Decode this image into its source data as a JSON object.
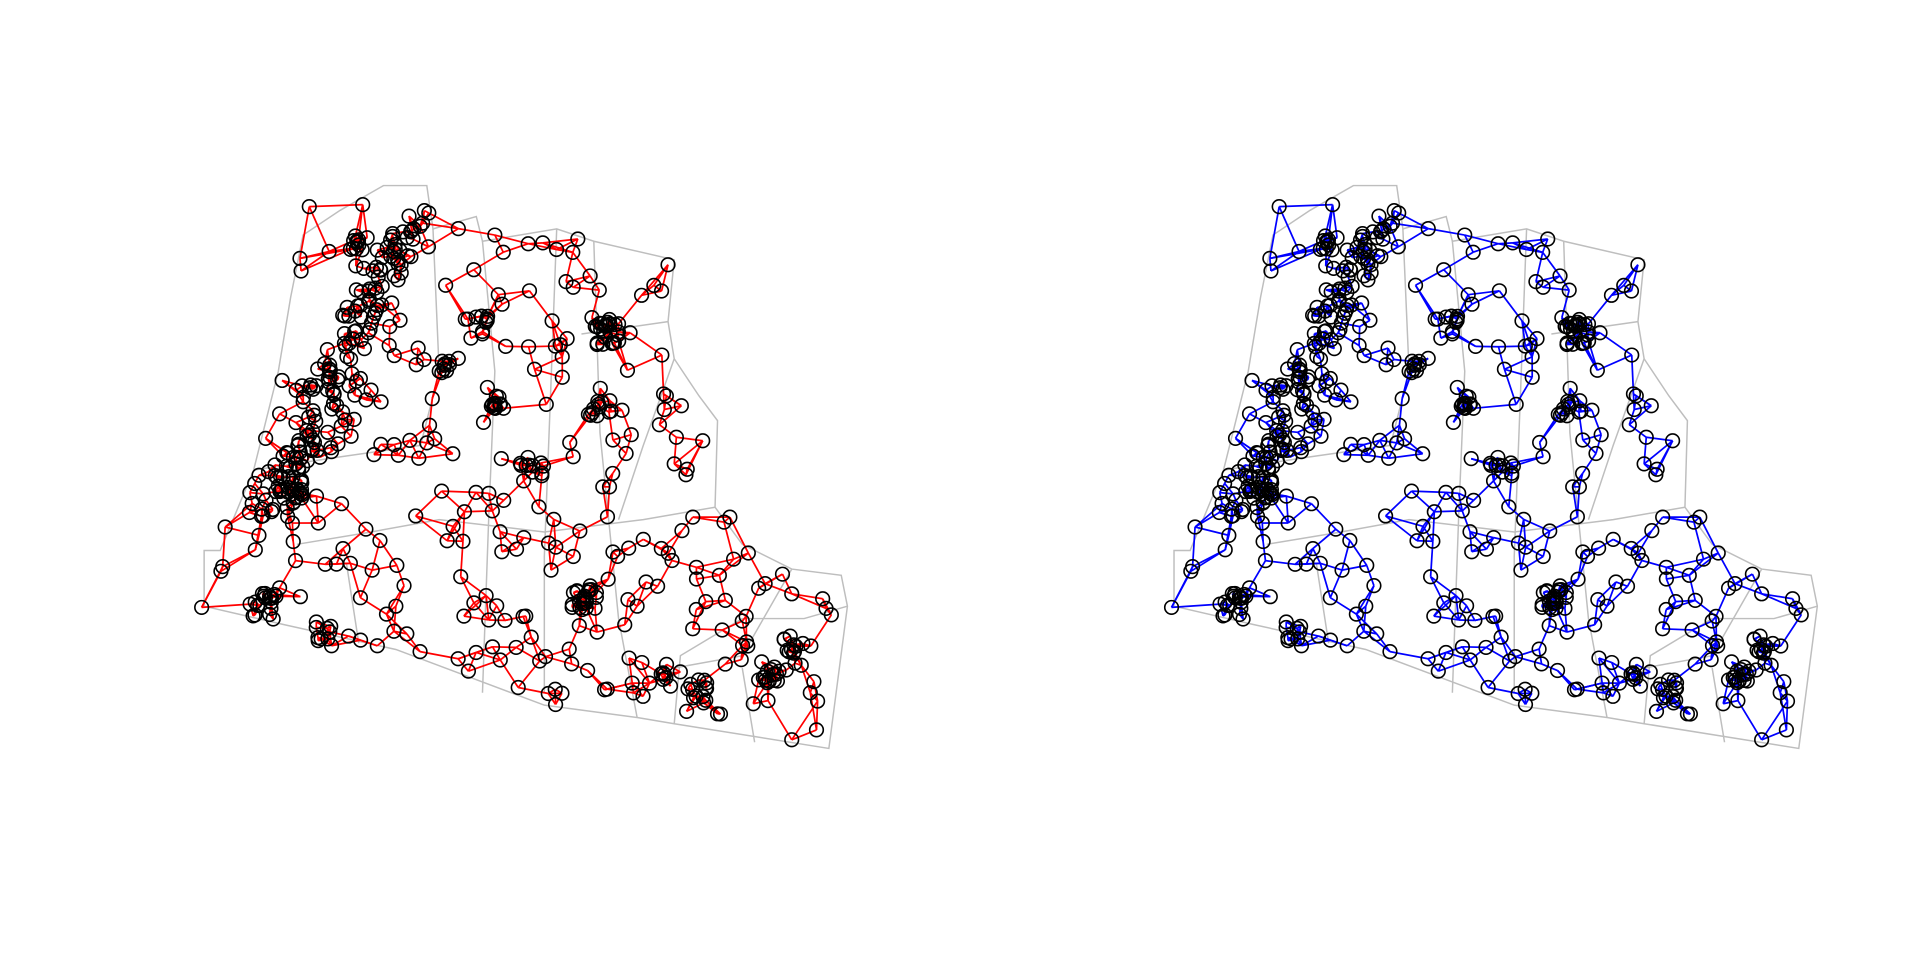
{
  "panels": [
    {
      "edge_color": "#ff0000"
    },
    {
      "edge_color": "#0000ff"
    }
  ],
  "node_color": "#000000",
  "boundary_color": "#bebebe"
}
